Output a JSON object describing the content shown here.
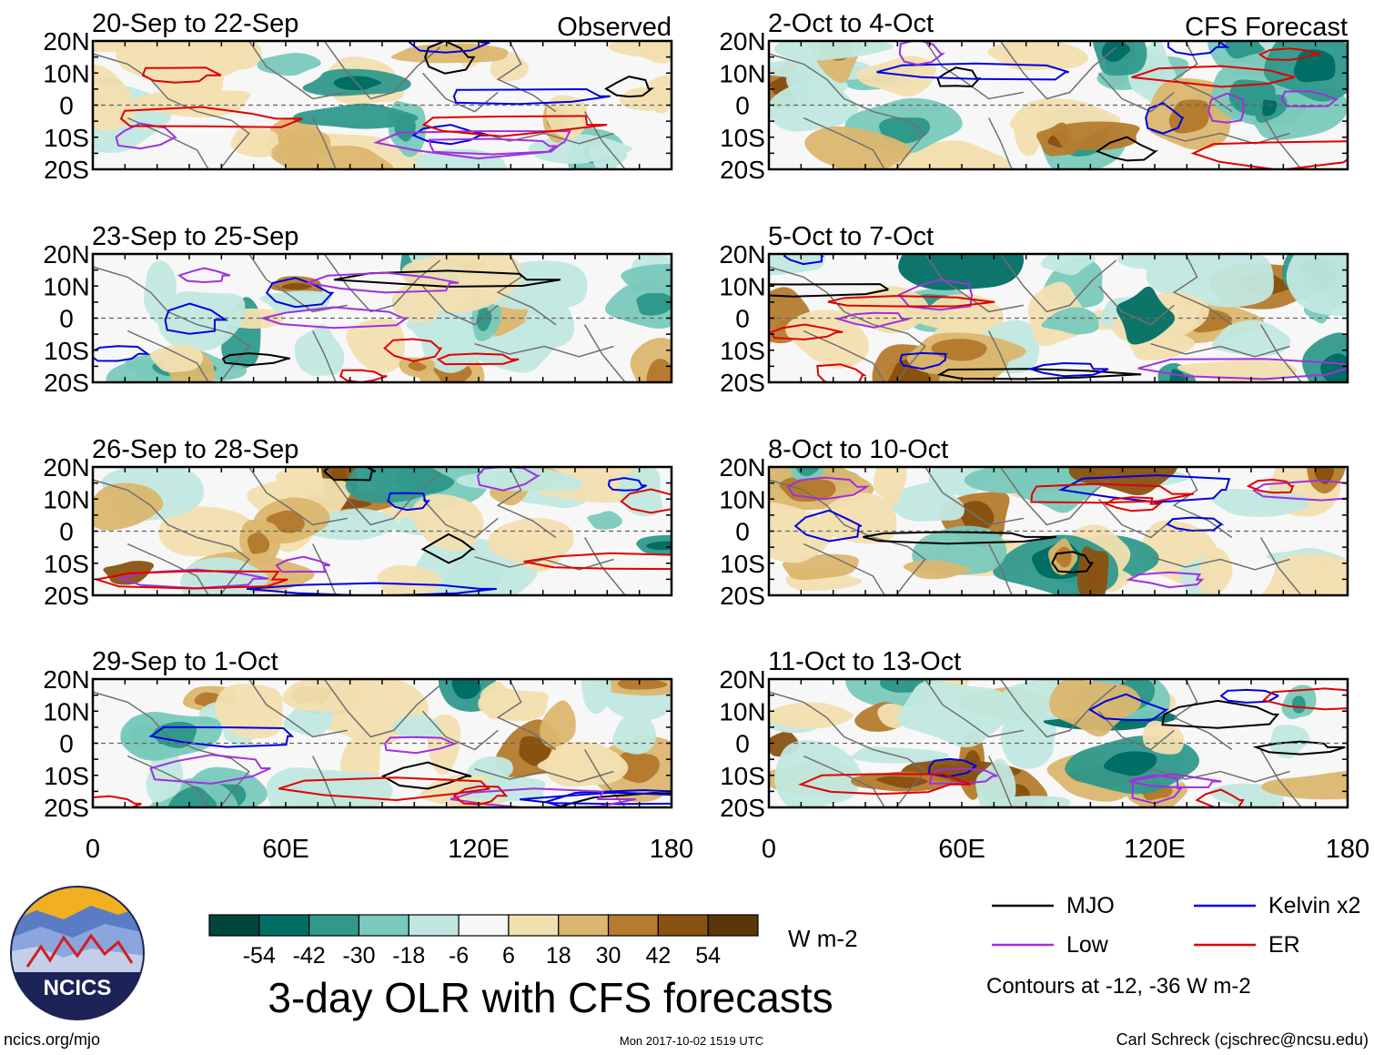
{
  "figure": {
    "title": "3-day OLR with CFS forecasts",
    "column_labels": {
      "observed": "Observed",
      "forecast": "CFS Forecast"
    },
    "footer_left": "ncics.org/mjo",
    "footer_center": "Mon 2017-10-02 1519 UTC",
    "footer_right": "Carl Schreck (cjschrec@ncsu.edu)",
    "logo_text": "NCICS",
    "contour_note": "Contours at -12, -36 W m-2",
    "units": "W m-2"
  },
  "chart_data": {
    "type": "heatmap",
    "variable": "OLR anomaly",
    "x_ticks": [
      "0",
      "60E",
      "120E",
      "180"
    ],
    "x_values": [
      0,
      60,
      120,
      180
    ],
    "xlim": [
      0,
      180
    ],
    "y_ticks": [
      "20N",
      "10N",
      "0",
      "10S",
      "20S"
    ],
    "y_values": [
      20,
      10,
      0,
      -10,
      -20
    ],
    "ylim": [
      -20,
      20
    ],
    "colorbar": {
      "ticks": [
        "-54",
        "-42",
        "-30",
        "-18",
        "-6",
        "6",
        "18",
        "30",
        "42",
        "54"
      ],
      "colors": [
        "#00463c",
        "#006e64",
        "#30998c",
        "#79c9bc",
        "#c1e8e0",
        "#f7f7f7",
        "#f2dfb0",
        "#dbb66e",
        "#b57b2e",
        "#8a5210",
        "#5c3608"
      ]
    },
    "legend": [
      {
        "label": "MJO",
        "color": "#000000"
      },
      {
        "label": "Kelvin x2",
        "color": "#0000e0"
      },
      {
        "label": "Low",
        "color": "#a030e0"
      },
      {
        "label": "ER",
        "color": "#e00000"
      }
    ],
    "panels": [
      {
        "title": "20-Sep to 22-Sep",
        "kind": "observed"
      },
      {
        "title": "23-Sep to 25-Sep",
        "kind": "observed"
      },
      {
        "title": "26-Sep to 28-Sep",
        "kind": "observed"
      },
      {
        "title": "29-Sep to 1-Oct",
        "kind": "observed"
      },
      {
        "title": "2-Oct to 4-Oct",
        "kind": "forecast"
      },
      {
        "title": "5-Oct to 7-Oct",
        "kind": "forecast"
      },
      {
        "title": "8-Oct to 10-Oct",
        "kind": "forecast"
      },
      {
        "title": "11-Oct to 13-Oct",
        "kind": "forecast"
      }
    ]
  }
}
